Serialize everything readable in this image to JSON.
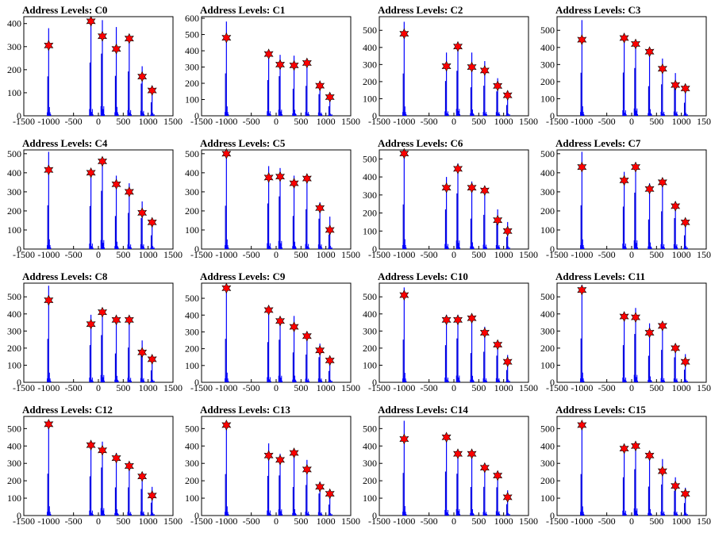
{
  "chart_data": [
    {
      "title": "Address Levels: C0",
      "type": "bar",
      "xlim": [
        -1500,
        1500
      ],
      "ylim": [
        0,
        430
      ],
      "yticks": [
        0,
        100,
        200,
        300,
        400
      ],
      "xticks": [
        -1500,
        -1000,
        -500,
        0,
        500,
        1000,
        1500
      ],
      "xtick_labels": [
        "-1500",
        "-1000",
        "-500",
        "0",
        "500",
        "1000",
        "1500"
      ],
      "levels": [
        {
          "x": -1000,
          "bar": 380,
          "marker": 305
        },
        {
          "x": -150,
          "bar": 420,
          "marker": 410
        },
        {
          "x": 80,
          "bar": 415,
          "marker": 345
        },
        {
          "x": 360,
          "bar": 385,
          "marker": 290
        },
        {
          "x": 620,
          "bar": 350,
          "marker": 335
        },
        {
          "x": 880,
          "bar": 215,
          "marker": 170
        },
        {
          "x": 1080,
          "bar": 130,
          "marker": 110
        }
      ]
    },
    {
      "title": "Address Levels: C1",
      "type": "bar",
      "xlim": [
        -1500,
        1500
      ],
      "ylim": [
        0,
        610
      ],
      "yticks": [
        0,
        100,
        200,
        300,
        400,
        500,
        600
      ],
      "xticks": [
        -1500,
        -1000,
        -500,
        0,
        500,
        1000,
        1500
      ],
      "xtick_labels": [
        "-1500",
        "-1000",
        "-500",
        "0",
        "500",
        "1000",
        "1500"
      ],
      "levels": [
        {
          "x": -1000,
          "bar": 580,
          "marker": 480
        },
        {
          "x": -150,
          "bar": 400,
          "marker": 380
        },
        {
          "x": 80,
          "bar": 375,
          "marker": 315
        },
        {
          "x": 360,
          "bar": 370,
          "marker": 310
        },
        {
          "x": 620,
          "bar": 335,
          "marker": 325
        },
        {
          "x": 880,
          "bar": 205,
          "marker": 185
        },
        {
          "x": 1080,
          "bar": 130,
          "marker": 115
        }
      ]
    },
    {
      "title": "Address Levels: C2",
      "type": "bar",
      "xlim": [
        -1500,
        1500
      ],
      "ylim": [
        0,
        580
      ],
      "yticks": [
        0,
        100,
        200,
        300,
        400,
        500
      ],
      "xticks": [
        -1500,
        -1000,
        -500,
        0,
        500,
        1000,
        1500
      ],
      "xtick_labels": [
        "-1500",
        "-1000",
        "-500",
        "0",
        "500",
        "1000",
        "1500"
      ],
      "levels": [
        {
          "x": -1000,
          "bar": 550,
          "marker": 480
        },
        {
          "x": -150,
          "bar": 370,
          "marker": 290
        },
        {
          "x": 80,
          "bar": 405,
          "marker": 405
        },
        {
          "x": 360,
          "bar": 370,
          "marker": 285
        },
        {
          "x": 620,
          "bar": 320,
          "marker": 265
        },
        {
          "x": 880,
          "bar": 220,
          "marker": 175
        },
        {
          "x": 1080,
          "bar": 140,
          "marker": 120
        }
      ]
    },
    {
      "title": "Address Levels: C3",
      "type": "bar",
      "xlim": [
        -1500,
        1500
      ],
      "ylim": [
        0,
        580
      ],
      "yticks": [
        0,
        100,
        200,
        300,
        400,
        500
      ],
      "xticks": [
        -1500,
        -1000,
        -500,
        0,
        500,
        1000,
        1500
      ],
      "xtick_labels": [
        "-1500",
        "-1000",
        "-500",
        "0",
        "500",
        "1000",
        "1500"
      ],
      "levels": [
        {
          "x": -1000,
          "bar": 560,
          "marker": 445
        },
        {
          "x": -150,
          "bar": 460,
          "marker": 455
        },
        {
          "x": 80,
          "bar": 430,
          "marker": 420
        },
        {
          "x": 360,
          "bar": 385,
          "marker": 375
        },
        {
          "x": 620,
          "bar": 335,
          "marker": 275
        },
        {
          "x": 880,
          "bar": 250,
          "marker": 180
        },
        {
          "x": 1080,
          "bar": 170,
          "marker": 160
        }
      ]
    },
    {
      "title": "Address Levels: C4",
      "type": "bar",
      "xlim": [
        -1500,
        1500
      ],
      "ylim": [
        0,
        520
      ],
      "yticks": [
        0,
        100,
        200,
        300,
        400,
        500
      ],
      "xticks": [
        -1500,
        -1000,
        -500,
        0,
        500,
        1000,
        1500
      ],
      "xtick_labels": [
        "-1500",
        "-1000",
        "-500",
        "0",
        "500",
        "1000",
        "1500"
      ],
      "levels": [
        {
          "x": -1000,
          "bar": 510,
          "marker": 415
        },
        {
          "x": -150,
          "bar": 410,
          "marker": 400
        },
        {
          "x": 80,
          "bar": 470,
          "marker": 460
        },
        {
          "x": 360,
          "bar": 385,
          "marker": 340
        },
        {
          "x": 620,
          "bar": 345,
          "marker": 300
        },
        {
          "x": 880,
          "bar": 250,
          "marker": 190
        },
        {
          "x": 1080,
          "bar": 160,
          "marker": 140
        }
      ]
    },
    {
      "title": "Address Levels: C5",
      "type": "bar",
      "xlim": [
        -1500,
        1500
      ],
      "ylim": [
        0,
        520
      ],
      "yticks": [
        0,
        100,
        200,
        300,
        400,
        500
      ],
      "xticks": [
        -1500,
        -1000,
        -500,
        0,
        500,
        1000,
        1500
      ],
      "xtick_labels": [
        "-1500",
        "-1000",
        "-500",
        "0",
        "500",
        "1000",
        "1500"
      ],
      "levels": [
        {
          "x": -1000,
          "bar": 505,
          "marker": 500
        },
        {
          "x": -150,
          "bar": 435,
          "marker": 375
        },
        {
          "x": 80,
          "bar": 425,
          "marker": 380
        },
        {
          "x": 360,
          "bar": 385,
          "marker": 345
        },
        {
          "x": 620,
          "bar": 380,
          "marker": 370
        },
        {
          "x": 880,
          "bar": 245,
          "marker": 215
        },
        {
          "x": 1080,
          "bar": 170,
          "marker": 100
        }
      ]
    },
    {
      "title": "Address Levels: C6",
      "type": "bar",
      "xlim": [
        -1500,
        1500
      ],
      "ylim": [
        0,
        550
      ],
      "yticks": [
        0,
        100,
        200,
        300,
        400,
        500
      ],
      "xticks": [
        -1500,
        -1000,
        -500,
        0,
        500,
        1000,
        1500
      ],
      "xtick_labels": [
        "-1500",
        "-1000",
        "-500",
        "0",
        "500",
        "1000",
        "1500"
      ],
      "levels": [
        {
          "x": -1000,
          "bar": 550,
          "marker": 530
        },
        {
          "x": -150,
          "bar": 400,
          "marker": 340
        },
        {
          "x": 80,
          "bar": 475,
          "marker": 445
        },
        {
          "x": 360,
          "bar": 375,
          "marker": 340
        },
        {
          "x": 620,
          "bar": 345,
          "marker": 325
        },
        {
          "x": 880,
          "bar": 220,
          "marker": 160
        },
        {
          "x": 1080,
          "bar": 150,
          "marker": 100
        }
      ]
    },
    {
      "title": "Address Levels: C7",
      "type": "bar",
      "xlim": [
        -1500,
        1500
      ],
      "ylim": [
        0,
        520
      ],
      "yticks": [
        0,
        100,
        200,
        300,
        400,
        500
      ],
      "xticks": [
        -1500,
        -1000,
        -500,
        0,
        500,
        1000,
        1500
      ],
      "xtick_labels": [
        "-1500",
        "-1000",
        "-500",
        "0",
        "500",
        "1000",
        "1500"
      ],
      "levels": [
        {
          "x": -1000,
          "bar": 510,
          "marker": 430
        },
        {
          "x": -150,
          "bar": 405,
          "marker": 360
        },
        {
          "x": 80,
          "bar": 455,
          "marker": 430
        },
        {
          "x": 360,
          "bar": 345,
          "marker": 315
        },
        {
          "x": 620,
          "bar": 360,
          "marker": 350
        },
        {
          "x": 880,
          "bar": 250,
          "marker": 225
        },
        {
          "x": 1080,
          "bar": 160,
          "marker": 140
        }
      ]
    },
    {
      "title": "Address Levels: C8",
      "type": "bar",
      "xlim": [
        -1500,
        1500
      ],
      "ylim": [
        0,
        580
      ],
      "yticks": [
        0,
        100,
        200,
        300,
        400,
        500
      ],
      "xticks": [
        -1500,
        -1000,
        -500,
        0,
        500,
        1000,
        1500
      ],
      "xtick_labels": [
        "-1500",
        "-1000",
        "-500",
        "0",
        "500",
        "1000",
        "1500"
      ],
      "levels": [
        {
          "x": -1000,
          "bar": 565,
          "marker": 480
        },
        {
          "x": -150,
          "bar": 395,
          "marker": 340
        },
        {
          "x": 80,
          "bar": 425,
          "marker": 410
        },
        {
          "x": 360,
          "bar": 375,
          "marker": 365
        },
        {
          "x": 620,
          "bar": 370,
          "marker": 365
        },
        {
          "x": 880,
          "bar": 245,
          "marker": 175
        },
        {
          "x": 1080,
          "bar": 155,
          "marker": 135
        }
      ]
    },
    {
      "title": "Address Levels: C9",
      "type": "bar",
      "xlim": [
        -1500,
        1500
      ],
      "ylim": [
        0,
        590
      ],
      "yticks": [
        0,
        100,
        200,
        300,
        400,
        500
      ],
      "xticks": [
        -1500,
        -1000,
        -500,
        0,
        500,
        1000,
        1500
      ],
      "xtick_labels": [
        "-1500",
        "-1000",
        "-500",
        "0",
        "500",
        "1000",
        "1500"
      ],
      "levels": [
        {
          "x": -1000,
          "bar": 575,
          "marker": 560
        },
        {
          "x": -150,
          "bar": 435,
          "marker": 430
        },
        {
          "x": 80,
          "bar": 390,
          "marker": 365
        },
        {
          "x": 360,
          "bar": 395,
          "marker": 330
        },
        {
          "x": 620,
          "bar": 300,
          "marker": 275
        },
        {
          "x": 880,
          "bar": 230,
          "marker": 190
        },
        {
          "x": 1080,
          "bar": 150,
          "marker": 130
        }
      ]
    },
    {
      "title": "Address Levels: C10",
      "type": "bar",
      "xlim": [
        -1500,
        1500
      ],
      "ylim": [
        0,
        580
      ],
      "yticks": [
        0,
        100,
        200,
        300,
        400,
        500
      ],
      "xticks": [
        -1500,
        -1000,
        -500,
        0,
        500,
        1000,
        1500
      ],
      "xtick_labels": [
        "-1500",
        "-1000",
        "-500",
        "0",
        "500",
        "1000",
        "1500"
      ],
      "levels": [
        {
          "x": -1000,
          "bar": 555,
          "marker": 510
        },
        {
          "x": -150,
          "bar": 395,
          "marker": 365
        },
        {
          "x": 80,
          "bar": 395,
          "marker": 365
        },
        {
          "x": 360,
          "bar": 380,
          "marker": 375
        },
        {
          "x": 620,
          "bar": 325,
          "marker": 290
        },
        {
          "x": 880,
          "bar": 240,
          "marker": 220
        },
        {
          "x": 1080,
          "bar": 160,
          "marker": 120
        }
      ]
    },
    {
      "title": "Address Levels: C11",
      "type": "bar",
      "xlim": [
        -1500,
        1500
      ],
      "ylim": [
        0,
        580
      ],
      "yticks": [
        0,
        100,
        200,
        300,
        400,
        500
      ],
      "xticks": [
        -1500,
        -1000,
        -500,
        0,
        500,
        1000,
        1500
      ],
      "xtick_labels": [
        "-1500",
        "-1000",
        "-500",
        "0",
        "500",
        "1000",
        "1500"
      ],
      "levels": [
        {
          "x": -1000,
          "bar": 570,
          "marker": 540
        },
        {
          "x": -150,
          "bar": 395,
          "marker": 385
        },
        {
          "x": 80,
          "bar": 435,
          "marker": 380
        },
        {
          "x": 360,
          "bar": 345,
          "marker": 290
        },
        {
          "x": 620,
          "bar": 345,
          "marker": 330
        },
        {
          "x": 880,
          "bar": 225,
          "marker": 200
        },
        {
          "x": 1080,
          "bar": 165,
          "marker": 120
        }
      ]
    },
    {
      "title": "Address Levels: C12",
      "type": "bar",
      "xlim": [
        -1500,
        1500
      ],
      "ylim": [
        0,
        570
      ],
      "yticks": [
        0,
        100,
        200,
        300,
        400,
        500
      ],
      "xticks": [
        -1500,
        -1000,
        -500,
        0,
        500,
        1000,
        1500
      ],
      "xtick_labels": [
        "-1500",
        "-1000",
        "-500",
        "0",
        "500",
        "1000",
        "1500"
      ],
      "levels": [
        {
          "x": -1000,
          "bar": 535,
          "marker": 525
        },
        {
          "x": -150,
          "bar": 410,
          "marker": 405
        },
        {
          "x": 80,
          "bar": 425,
          "marker": 375
        },
        {
          "x": 360,
          "bar": 360,
          "marker": 330
        },
        {
          "x": 620,
          "bar": 295,
          "marker": 285
        },
        {
          "x": 880,
          "bar": 235,
          "marker": 225
        },
        {
          "x": 1080,
          "bar": 165,
          "marker": 115
        }
      ]
    },
    {
      "title": "Address Levels: C13",
      "type": "bar",
      "xlim": [
        -1500,
        1500
      ],
      "ylim": [
        0,
        570
      ],
      "yticks": [
        0,
        100,
        200,
        300,
        400,
        500
      ],
      "xticks": [
        -1500,
        -1000,
        -500,
        0,
        500,
        1000,
        1500
      ],
      "xtick_labels": [
        "-1500",
        "-1000",
        "-500",
        "0",
        "500",
        "1000",
        "1500"
      ],
      "levels": [
        {
          "x": -1000,
          "bar": 530,
          "marker": 520
        },
        {
          "x": -150,
          "bar": 415,
          "marker": 345
        },
        {
          "x": 80,
          "bar": 355,
          "marker": 320
        },
        {
          "x": 360,
          "bar": 365,
          "marker": 360
        },
        {
          "x": 620,
          "bar": 320,
          "marker": 265
        },
        {
          "x": 880,
          "bar": 195,
          "marker": 165
        },
        {
          "x": 1080,
          "bar": 140,
          "marker": 125
        }
      ]
    },
    {
      "title": "Address Levels: C14",
      "type": "bar",
      "xlim": [
        -1500,
        1500
      ],
      "ylim": [
        0,
        570
      ],
      "yticks": [
        0,
        100,
        200,
        300,
        400,
        500
      ],
      "xticks": [
        -1500,
        -1000,
        -500,
        0,
        500,
        1000,
        1500
      ],
      "xtick_labels": [
        "-1500",
        "-1000",
        "-500",
        "0",
        "500",
        "1000",
        "1500"
      ],
      "levels": [
        {
          "x": -1000,
          "bar": 545,
          "marker": 440
        },
        {
          "x": -150,
          "bar": 460,
          "marker": 450
        },
        {
          "x": 80,
          "bar": 370,
          "marker": 355
        },
        {
          "x": 360,
          "bar": 365,
          "marker": 355
        },
        {
          "x": 620,
          "bar": 300,
          "marker": 275
        },
        {
          "x": 880,
          "bar": 250,
          "marker": 230
        },
        {
          "x": 1080,
          "bar": 145,
          "marker": 105
        }
      ]
    },
    {
      "title": "Address Levels: C15",
      "type": "bar",
      "xlim": [
        -1500,
        1500
      ],
      "ylim": [
        0,
        570
      ],
      "yticks": [
        0,
        100,
        200,
        300,
        400,
        500
      ],
      "xticks": [
        -1500,
        -1000,
        -500,
        0,
        500,
        1000,
        1500
      ],
      "xtick_labels": [
        "-1500",
        "-1000",
        "-500",
        "0",
        "500",
        "1000",
        "1500"
      ],
      "levels": [
        {
          "x": -1000,
          "bar": 530,
          "marker": 520
        },
        {
          "x": -150,
          "bar": 400,
          "marker": 385
        },
        {
          "x": 80,
          "bar": 410,
          "marker": 400
        },
        {
          "x": 360,
          "bar": 370,
          "marker": 345
        },
        {
          "x": 620,
          "bar": 325,
          "marker": 255
        },
        {
          "x": 880,
          "bar": 220,
          "marker": 170
        },
        {
          "x": 1080,
          "bar": 160,
          "marker": 125
        }
      ]
    }
  ],
  "colors": {
    "bar": "#0000ff",
    "bar_dark": "#0000cc",
    "marker_fill": "#ff0000",
    "marker_stroke": "#000000",
    "axis": "#000000"
  }
}
